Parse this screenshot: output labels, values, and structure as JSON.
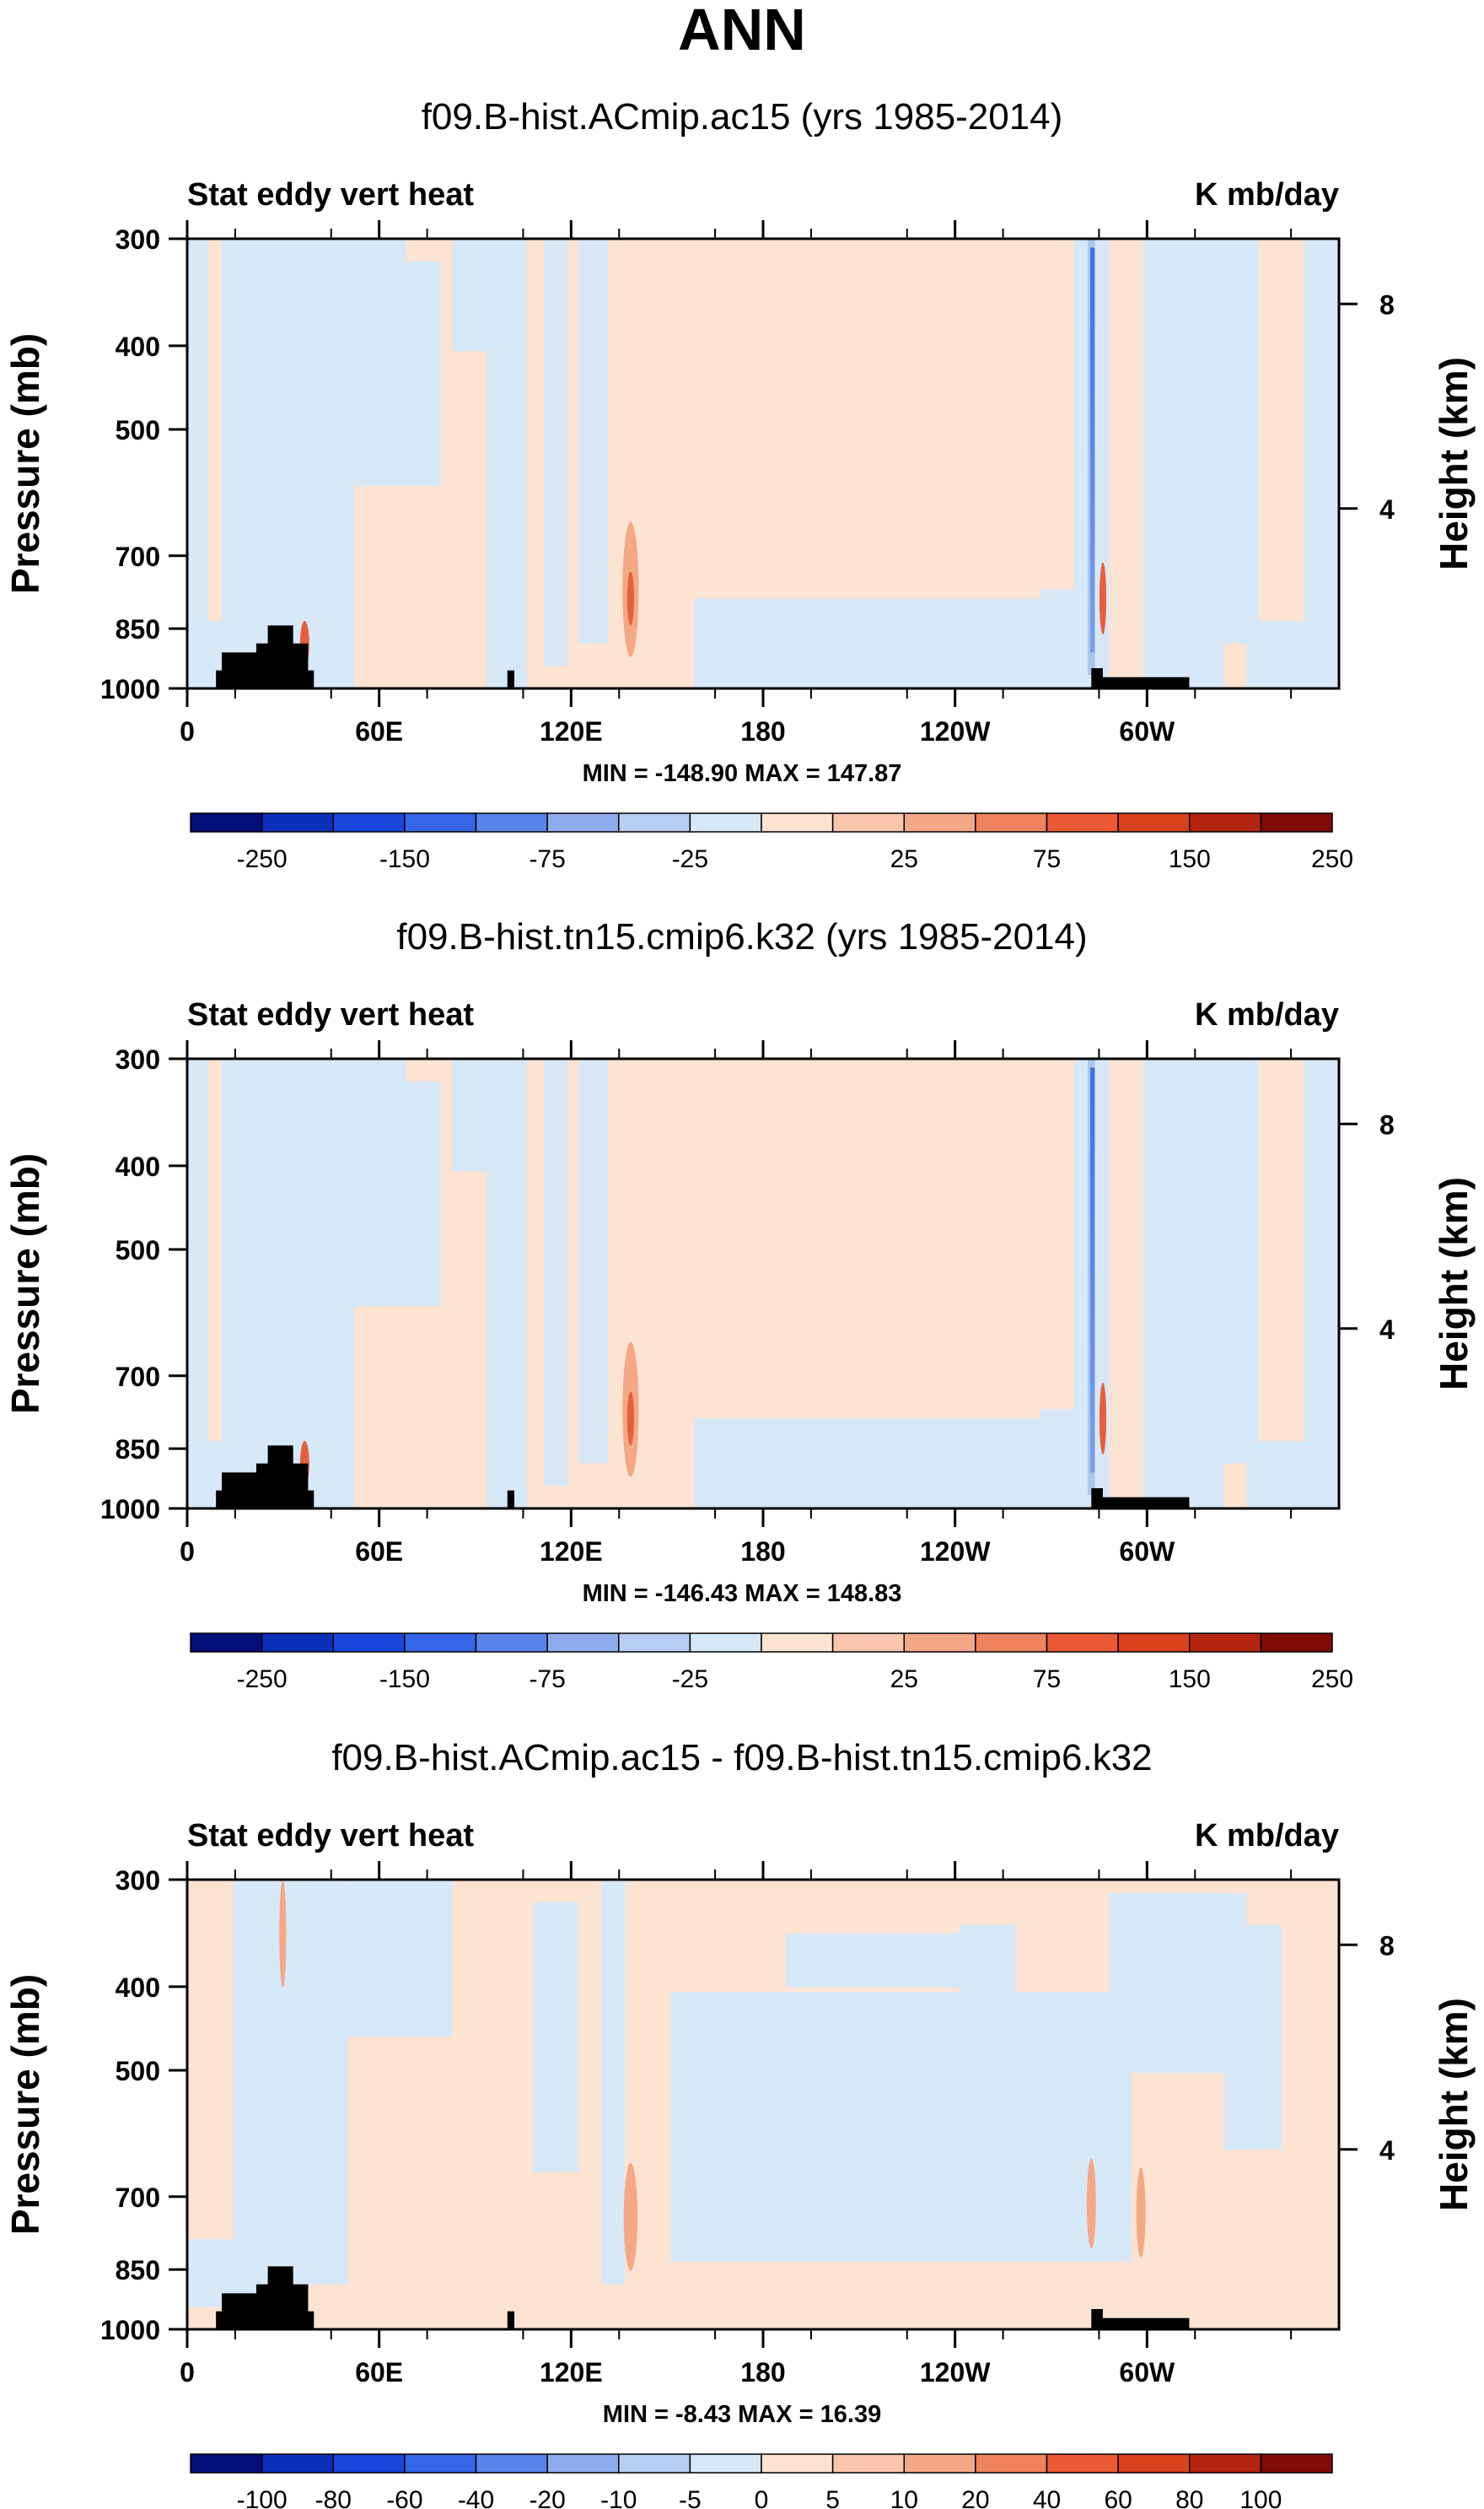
{
  "main_title": "ANN",
  "colors": {
    "terrain": "#000000",
    "field_light_blue": "#d7e8f8",
    "field_light_peach": "#fde3d2",
    "blue_mid": "#a9c6ee",
    "blue_strong": "#3f6fe0",
    "orange_mid": "#f4a886",
    "orange_strong": "#e5603a"
  },
  "chart_data": [
    {
      "type": "heatmap",
      "title": "f09.B-hist.ACmip.ac15 (yrs 1985-2014)",
      "left_label": "Stat eddy vert heat",
      "right_label": "K mb/day",
      "ylabel": "Pressure (mb)",
      "ylabel_right": "Height (km)",
      "x_ticks": [
        "0",
        "60E",
        "120E",
        "180",
        "120W",
        "60W"
      ],
      "y_ticks": [
        "300",
        "400",
        "500",
        "700",
        "850",
        "1000"
      ],
      "y_right_ticks": [
        "8",
        "4"
      ],
      "stats": "MIN = -148.90   MAX = 147.87",
      "colorbar_labels": [
        "-250",
        "-150",
        "-75",
        "-25",
        "25",
        "75",
        "150",
        "250"
      ]
    },
    {
      "type": "heatmap",
      "title": "f09.B-hist.tn15.cmip6.k32 (yrs 1985-2014)",
      "left_label": "Stat eddy vert heat",
      "right_label": "K mb/day",
      "ylabel": "Pressure (mb)",
      "ylabel_right": "Height (km)",
      "x_ticks": [
        "0",
        "60E",
        "120E",
        "180",
        "120W",
        "60W"
      ],
      "y_ticks": [
        "300",
        "400",
        "500",
        "700",
        "850",
        "1000"
      ],
      "y_right_ticks": [
        "8",
        "4"
      ],
      "stats": "MIN = -146.43   MAX = 148.83",
      "colorbar_labels": [
        "-250",
        "-150",
        "-75",
        "-25",
        "25",
        "75",
        "150",
        "250"
      ]
    },
    {
      "type": "heatmap",
      "title": "f09.B-hist.ACmip.ac15 - f09.B-hist.tn15.cmip6.k32",
      "left_label": "Stat eddy vert heat",
      "right_label": "K mb/day",
      "ylabel": "Pressure (mb)",
      "ylabel_right": "Height (km)",
      "x_ticks": [
        "0",
        "60E",
        "120E",
        "180",
        "120W",
        "60W"
      ],
      "y_ticks": [
        "300",
        "400",
        "500",
        "700",
        "850",
        "1000"
      ],
      "y_right_ticks": [
        "8",
        "4"
      ],
      "stats": "MIN =   -8.43   MAX =  16.39",
      "colorbar_labels": [
        "-100",
        "-80",
        "-60",
        "-40",
        "-20",
        "-10",
        "-5",
        "0",
        "5",
        "10",
        "20",
        "40",
        "60",
        "80",
        "100"
      ]
    }
  ]
}
